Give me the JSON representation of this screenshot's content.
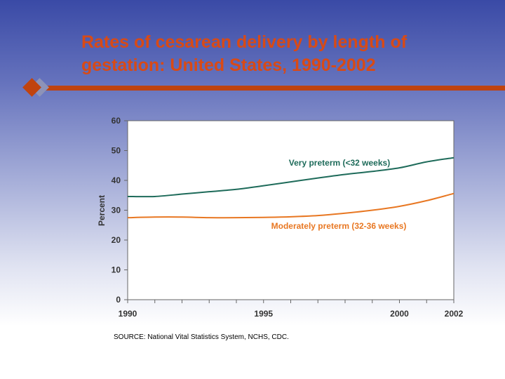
{
  "slide": {
    "title": "Rates of cesarean delivery by length of gestation: United States, 1990-2002",
    "source": "SOURCE: National Vital Statistics System, NCHS, CDC."
  },
  "colors": {
    "title": "#d84a16",
    "rule": "#c0430f",
    "very_preterm": "#1e6b5a",
    "moderately_preterm": "#e87722"
  },
  "chart_data": {
    "type": "line",
    "ylabel": "Percent",
    "xlabel": "",
    "ylim": [
      0,
      60
    ],
    "xlim": [
      1990,
      2002
    ],
    "yticks": [
      0,
      10,
      20,
      30,
      40,
      50,
      60
    ],
    "xtick_labels": [
      "1990",
      "1995",
      "2000",
      "2002"
    ],
    "grid": false,
    "x": [
      1990,
      1991,
      1992,
      1993,
      1994,
      1995,
      1996,
      1997,
      1998,
      1999,
      2000,
      2001,
      2002
    ],
    "series": [
      {
        "name": "Very preterm (<32 weeks)",
        "values": [
          34.6,
          34.6,
          35.4,
          36.2,
          37.0,
          38.2,
          39.5,
          40.8,
          42.0,
          43.0,
          44.2,
          46.2,
          47.6
        ]
      },
      {
        "name": "Moderately preterm (32-36 weeks)",
        "values": [
          27.5,
          27.7,
          27.7,
          27.5,
          27.5,
          27.6,
          27.8,
          28.2,
          29.0,
          30.0,
          31.3,
          33.2,
          35.6
        ]
      }
    ]
  }
}
